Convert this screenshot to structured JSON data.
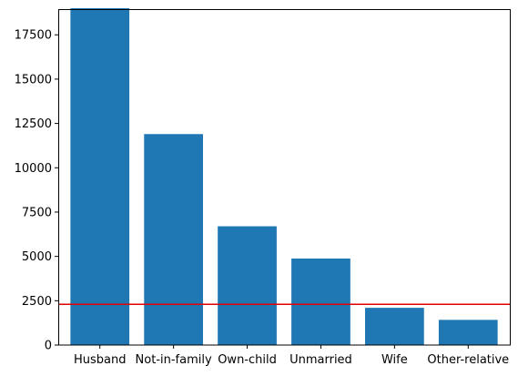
{
  "chart_data": {
    "type": "bar",
    "title": "",
    "xlabel": "",
    "ylabel": "",
    "categories": [
      "Husband",
      "Not-in-family",
      "Own-child",
      "Unmarried",
      "Wife",
      "Other-relative"
    ],
    "values": [
      19000,
      11900,
      6700,
      4880,
      2100,
      1420
    ],
    "ylim": [
      0,
      18950
    ],
    "yticks": [
      0,
      2500,
      5000,
      7500,
      10000,
      12500,
      15000,
      17500
    ],
    "ytick_labels": [
      "0",
      "2500",
      "5000",
      "7500",
      "10000",
      "12500",
      "15000",
      "17500"
    ],
    "reference_line": {
      "y": 2300,
      "color": "#e00000"
    },
    "bar_color": "#1f77b4",
    "grid": false
  }
}
